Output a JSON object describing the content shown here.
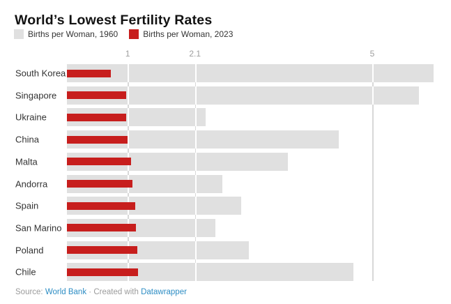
{
  "header": {
    "title": "World’s Lowest Fertility Rates"
  },
  "legend": {
    "items": [
      {
        "label": "Births per Woman, 1960",
        "color": "#e0e0e0"
      },
      {
        "label": "Births per Woman, 2023",
        "color": "#c71e1d"
      }
    ]
  },
  "chart_data": {
    "type": "bar",
    "orientation": "horizontal",
    "title": "World’s Lowest Fertility Rates",
    "categories": [
      "South Korea",
      "Singapore",
      "Ukraine",
      "China",
      "Malta",
      "Andorra",
      "Spain",
      "San Marino",
      "Poland",
      "Chile"
    ],
    "series": [
      {
        "name": "Births per Woman, 1960",
        "color": "#e0e0e0",
        "values": [
          6.0,
          5.76,
          2.28,
          4.45,
          3.62,
          2.55,
          2.86,
          2.44,
          2.98,
          4.69
        ]
      },
      {
        "name": "Births per Woman, 2023",
        "color": "#c71e1d",
        "values": [
          0.72,
          0.97,
          0.98,
          1.0,
          1.06,
          1.08,
          1.12,
          1.14,
          1.16,
          1.17
        ]
      }
    ],
    "xlabel": "",
    "ylabel": "",
    "x_ticks": [
      1,
      2.1,
      5
    ],
    "x_tick_labels": [
      "1",
      "2.1",
      "5"
    ],
    "xlim": [
      0,
      6.3
    ],
    "grid": "vertical",
    "legend_position": "top",
    "sorted_by": "2023 ascending"
  },
  "footer": {
    "source_label": "Source:",
    "source_link": "World Bank",
    "separator": "·",
    "created_label": "Created with",
    "tool_link": "Datawrapper"
  },
  "colors": {
    "bar_1960": "#e0e0e0",
    "bar_2023": "#c71e1d",
    "gridline": "#d8d8d8",
    "tick_text": "#9e9e9e",
    "link_blue": "#2d8dc4",
    "footer_text": "#9b9b9b"
  }
}
